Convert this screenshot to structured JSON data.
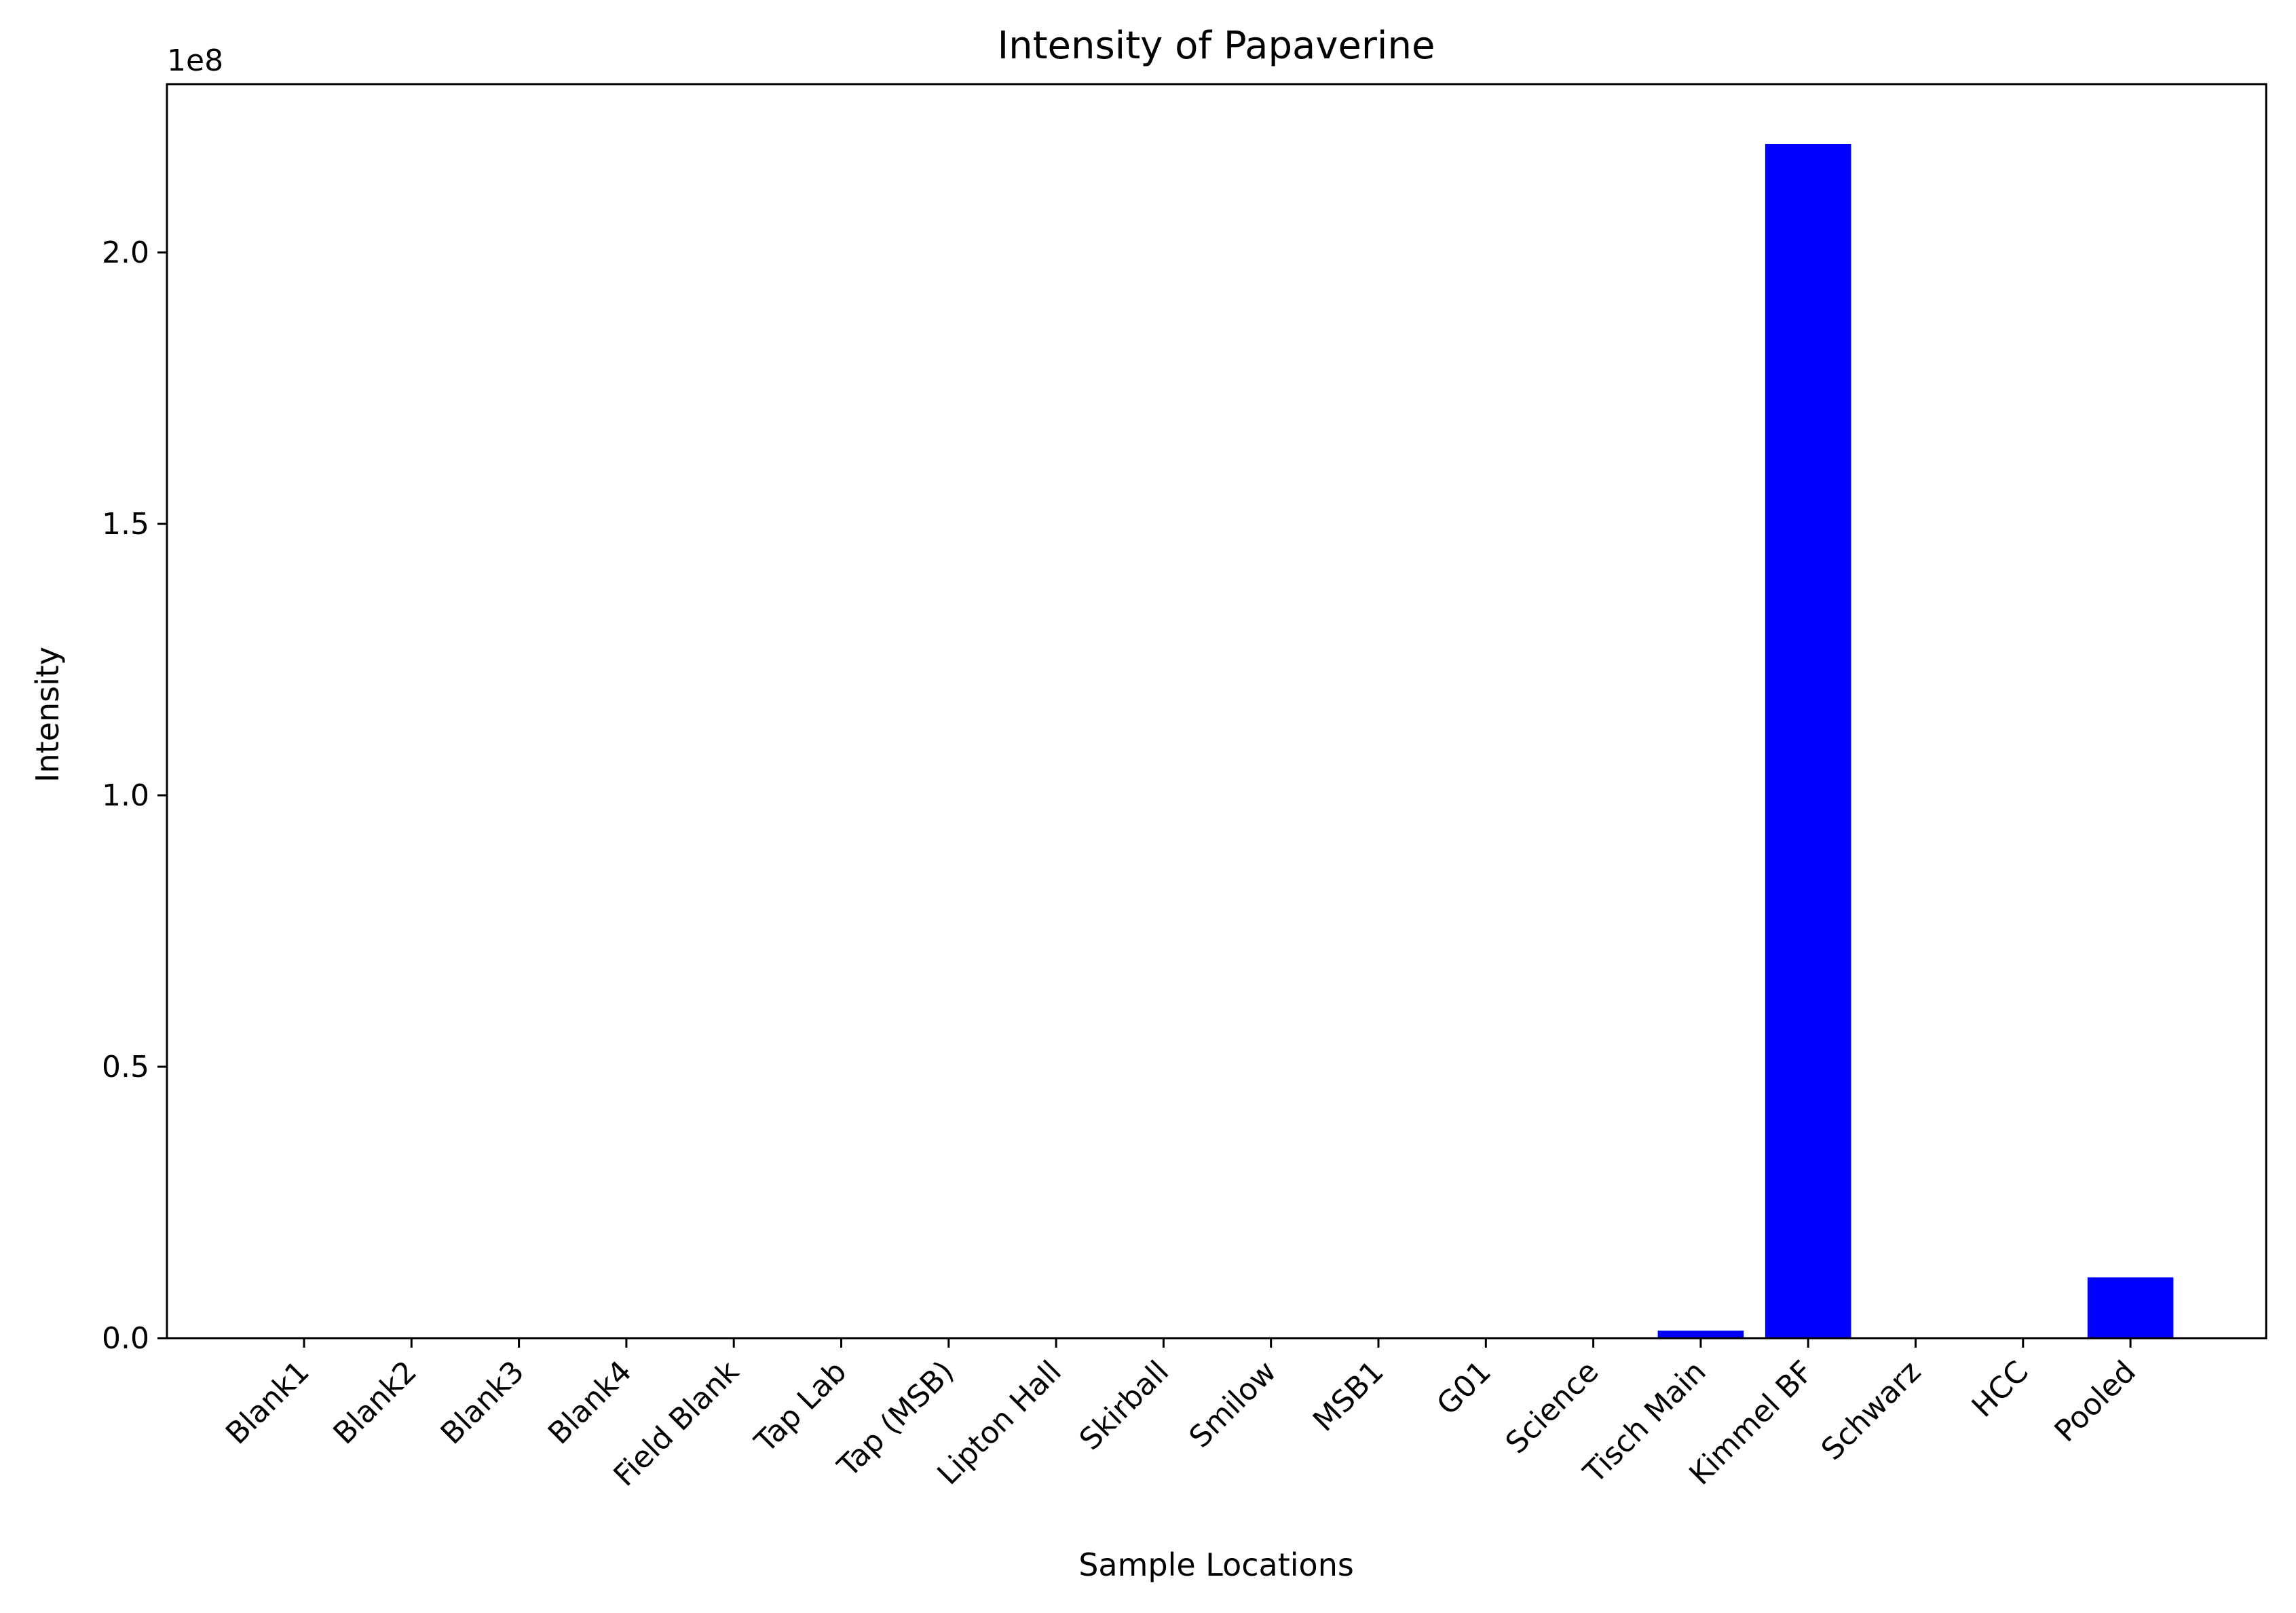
{
  "chart_data": {
    "type": "bar",
    "title": "Intensity of Papaverine",
    "xlabel": "Sample Locations",
    "ylabel": "Intensity",
    "y_offset_label": "1e8",
    "y_scale_factor": 100000000,
    "categories": [
      "Blank1",
      "Blank2",
      "Blank3",
      "Blank4",
      "Field Blank",
      "Tap Lab",
      "Tap (MSB)",
      "Lipton Hall",
      "Skirball",
      "Smilow",
      "MSB1",
      "G01",
      "Science",
      "Tisch Main",
      "Kimmel BF",
      "Schwarz",
      "HCC",
      "Pooled"
    ],
    "values": [
      0,
      0,
      0,
      0,
      0,
      0,
      0,
      0,
      0,
      0,
      0,
      0,
      0,
      1400000,
      220000000,
      0,
      0,
      11200000
    ],
    "yticks": [
      0.0,
      0.5,
      1.0,
      1.5,
      2.0
    ],
    "ytick_labels": [
      "0.0",
      "0.5",
      "1.0",
      "1.5",
      "2.0"
    ],
    "ylim": [
      0,
      231000000
    ],
    "grid": false,
    "legend": "none",
    "bar_color": "#0000ff"
  }
}
